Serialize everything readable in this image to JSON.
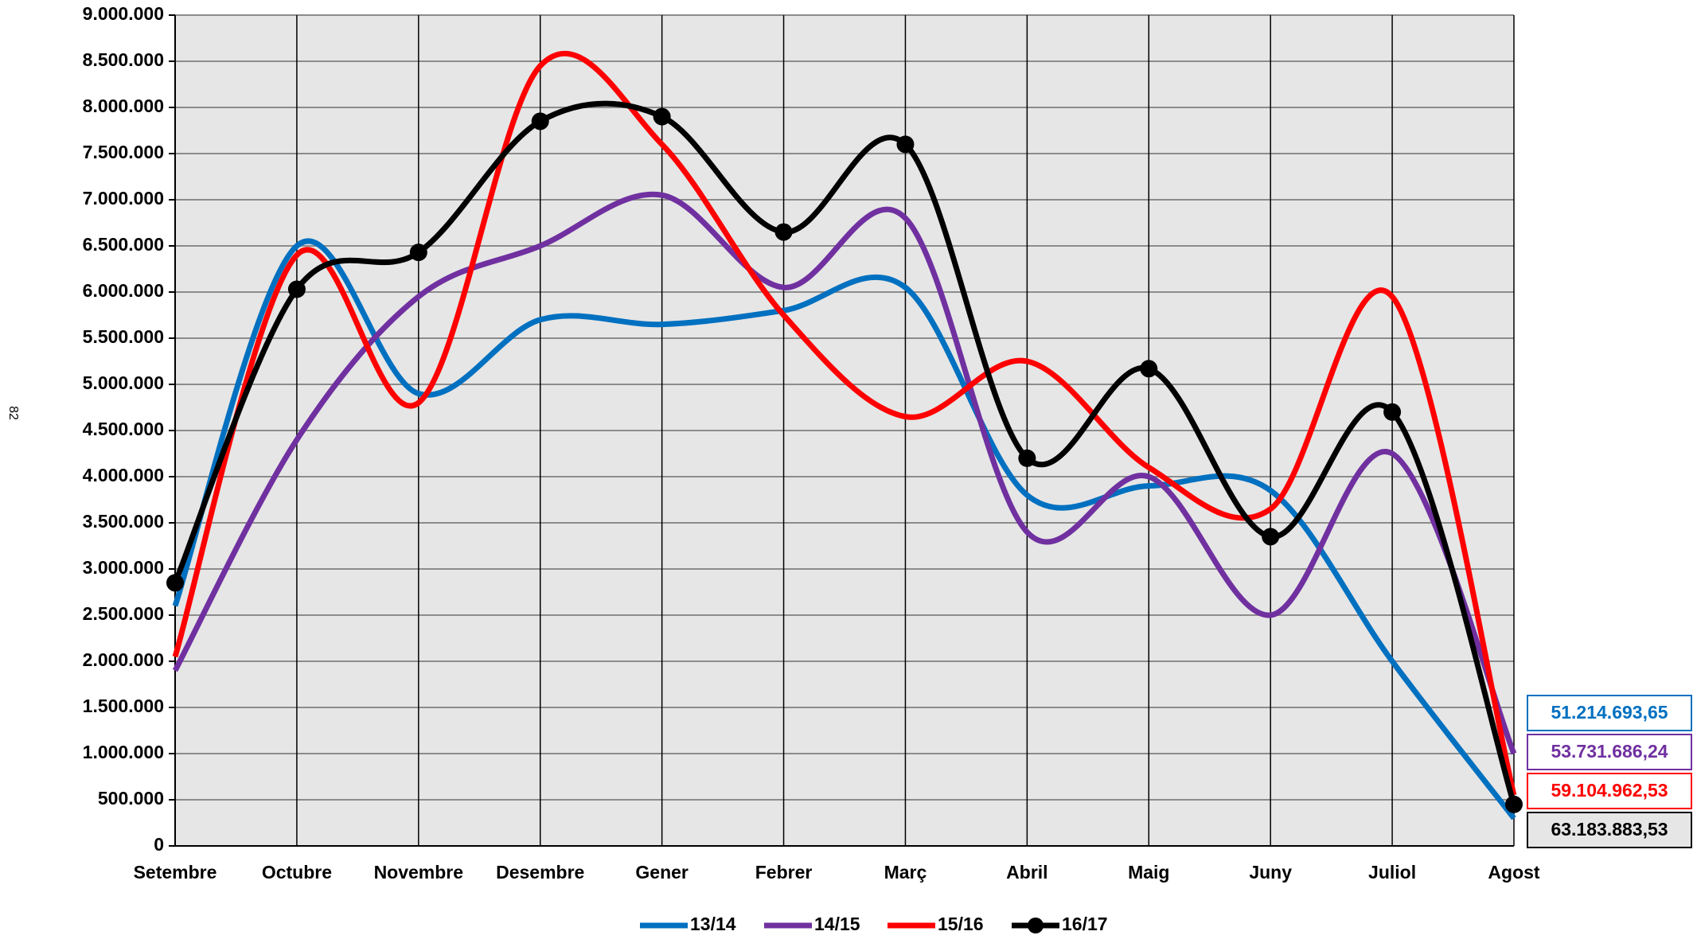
{
  "page_number": "82",
  "chart_data": {
    "type": "line",
    "smooth": true,
    "grid": true,
    "legend": "bottom",
    "categories": [
      "Setembre",
      "Octubre",
      "Novembre",
      "Desembre",
      "Gener",
      "Febrer",
      "Març",
      "Abril",
      "Maig",
      "Juny",
      "Juliol",
      "Agost"
    ],
    "ylim": [
      0,
      9000000
    ],
    "yticks": [
      0,
      {
        "value": 500000,
        "label": "500.000"
      },
      {
        "value": 1000000,
        "label": "1.000.000"
      },
      {
        "value": 1500000,
        "label": "1.500.000"
      },
      {
        "value": 2000000,
        "label": "2.000.000"
      },
      {
        "value": 2500000,
        "label": "2.500.000"
      },
      {
        "value": 3000000,
        "label": "3.000.000"
      },
      {
        "value": 3500000,
        "label": "3.500.000"
      },
      {
        "value": 4000000,
        "label": "4.000.000"
      },
      {
        "value": 4500000,
        "label": "4.500.000"
      },
      {
        "value": 5000000,
        "label": "5.000.000"
      },
      {
        "value": 5500000,
        "label": "5.500.000"
      },
      {
        "value": 6000000,
        "label": "6.000.000"
      },
      {
        "value": 6500000,
        "label": "6.500.000"
      },
      {
        "value": 7000000,
        "label": "7.000.000"
      },
      {
        "value": 7500000,
        "label": "7.500.000"
      },
      {
        "value": 8000000,
        "label": "8.000.000"
      },
      {
        "value": 8500000,
        "label": "8.500.000"
      },
      {
        "value": 9000000,
        "label": "9.000.000"
      }
    ],
    "series": [
      {
        "name": "13/14",
        "color": "#0070c0",
        "markers": false,
        "total_label": "51.214.693,65",
        "values": [
          2600000,
          6500000,
          4900000,
          5700000,
          5650000,
          5800000,
          6050000,
          3800000,
          3900000,
          3850000,
          2000000,
          300000
        ]
      },
      {
        "name": "14/15",
        "color": "#7030a0",
        "markers": false,
        "total_label": "53.731.686,24",
        "values": [
          1900000,
          4400000,
          5950000,
          6500000,
          7050000,
          6050000,
          6800000,
          3400000,
          4000000,
          2500000,
          4250000,
          1000000
        ]
      },
      {
        "name": "15/16",
        "color": "#ff0000",
        "markers": false,
        "total_label": "59.104.962,53",
        "values": [
          2050000,
          6400000,
          4800000,
          8450000,
          7600000,
          5750000,
          4650000,
          5250000,
          4100000,
          3650000,
          5950000,
          550000
        ]
      },
      {
        "name": "16/17",
        "color": "#000000",
        "markers": true,
        "total_label": "63.183.883,53",
        "values": [
          2850000,
          6030000,
          6430000,
          7850000,
          7900000,
          6650000,
          7600000,
          4200000,
          5170000,
          3350000,
          4700000,
          450000
        ]
      }
    ]
  }
}
